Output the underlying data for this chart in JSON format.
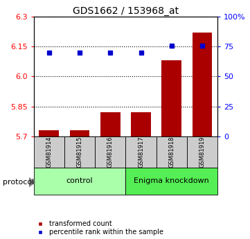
{
  "title": "GDS1662 / 153968_at",
  "samples": [
    "GSM81914",
    "GSM81915",
    "GSM81916",
    "GSM81917",
    "GSM81918",
    "GSM81919"
  ],
  "red_values": [
    5.73,
    5.73,
    5.82,
    5.82,
    6.08,
    6.22
  ],
  "blue_values": [
    70,
    70,
    70,
    70,
    76,
    76
  ],
  "ylim_left": [
    5.7,
    6.3
  ],
  "ylim_right": [
    0,
    100
  ],
  "yticks_left": [
    5.7,
    5.85,
    6.0,
    6.15,
    6.3
  ],
  "yticks_right": [
    0,
    25,
    50,
    75,
    100
  ],
  "ytick_labels_right": [
    "0",
    "25",
    "50",
    "75",
    "100%"
  ],
  "bar_color": "#aa0000",
  "dot_color": "#0000cc",
  "group_labels": [
    "control",
    "Enigma knockdown"
  ],
  "group_ranges": [
    [
      0,
      3
    ],
    [
      3,
      6
    ]
  ],
  "group_colors": [
    "#aaffaa",
    "#55ee55"
  ],
  "sample_box_color": "#cccccc",
  "protocol_label": "protocol",
  "legend_red": "transformed count",
  "legend_blue": "percentile rank within the sample",
  "title_fontsize": 10,
  "tick_fontsize": 8,
  "sample_fontsize": 6,
  "group_fontsize": 8,
  "legend_fontsize": 7,
  "protocol_fontsize": 8
}
